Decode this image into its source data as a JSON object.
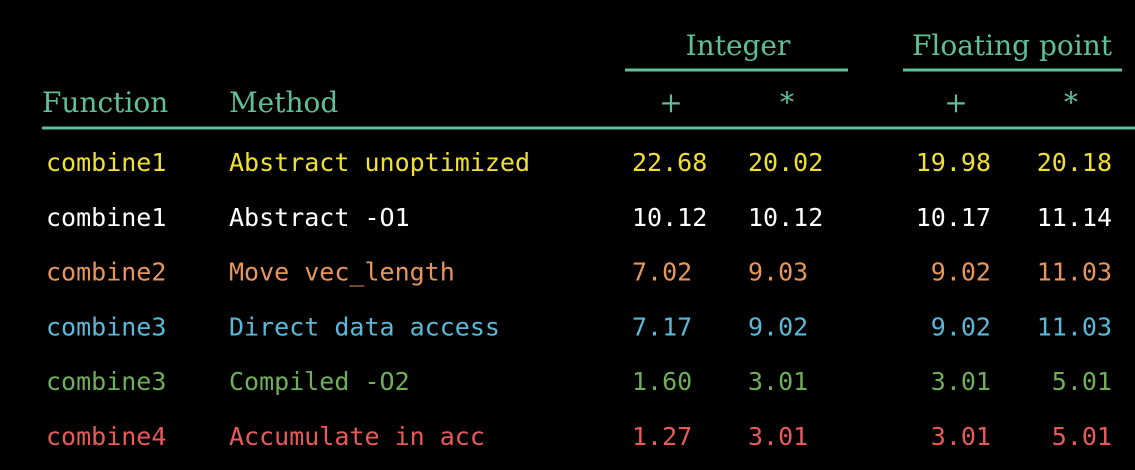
{
  "header": {
    "groups": [
      {
        "label": "Integer"
      },
      {
        "label": "Floating point"
      }
    ],
    "columns": {
      "function": "Function",
      "method": "Method",
      "int_add": "+",
      "int_mul": "*",
      "fp_add": "+",
      "fp_mul": "*"
    },
    "color": "#5fbf9a"
  },
  "rows": [
    {
      "function": "combine1",
      "method": "Abstract unoptimized",
      "int_add": "22.68",
      "int_mul": "20.02",
      "fp_add": "19.98",
      "fp_mul": "20.18",
      "color": "#f0e030"
    },
    {
      "function": "combine1",
      "method": "Abstract -O1",
      "int_add": "10.12",
      "int_mul": "10.12",
      "fp_add": "10.17",
      "fp_mul": "11.14",
      "color": "#ffffff"
    },
    {
      "function": "combine2",
      "method": "Move vec_length",
      "int_add": "7.02",
      "int_mul": "9.03",
      "fp_add": "9.02",
      "fp_mul": "11.03",
      "color": "#e8955a"
    },
    {
      "function": "combine3",
      "method": "Direct data access",
      "int_add": "7.17",
      "int_mul": "9.02",
      "fp_add": "9.02",
      "fp_mul": "11.03",
      "color": "#5bb8d8"
    },
    {
      "function": "combine3",
      "method": "Compiled -O2",
      "int_add": "1.60",
      "int_mul": "3.01",
      "fp_add": "3.01",
      "fp_mul": "5.01",
      "color": "#6fae5a"
    },
    {
      "function": "combine4",
      "method": "Accumulate in acc",
      "int_add": "1.27",
      "int_mul": "3.01",
      "fp_add": "3.01",
      "fp_mul": "5.01",
      "color": "#e85a5a"
    }
  ]
}
